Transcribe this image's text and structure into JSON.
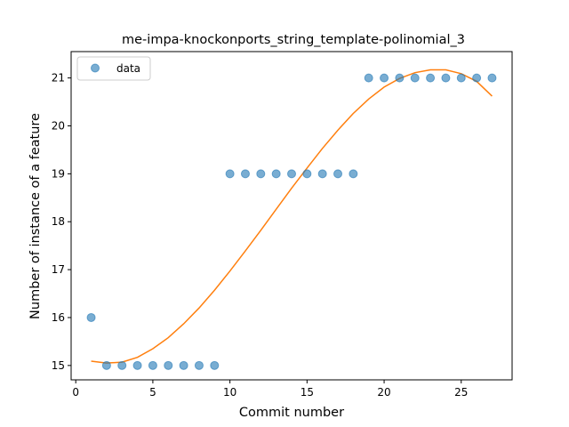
{
  "chart_data": {
    "type": "scatter",
    "title": "me-impa-knockonports_string_template-polinomial_3",
    "xlabel": "Commit number",
    "ylabel": "Number of instance of a feature",
    "xlim": [
      -0.3,
      28.3
    ],
    "ylim": [
      14.7,
      21.55
    ],
    "x_ticks": [
      0,
      5,
      10,
      15,
      20,
      25
    ],
    "y_ticks": [
      15,
      16,
      17,
      18,
      19,
      20,
      21
    ],
    "legend": {
      "placement": "top-left",
      "entries": [
        "data"
      ]
    },
    "grid": false,
    "series": [
      {
        "name": "data",
        "kind": "scatter",
        "color": "#1f77b4",
        "x": [
          1,
          2,
          3,
          4,
          5,
          6,
          7,
          8,
          9,
          10,
          11,
          12,
          13,
          14,
          15,
          16,
          17,
          18,
          19,
          20,
          21,
          22,
          23,
          24,
          25,
          26,
          27
        ],
        "y": [
          16,
          15,
          15,
          15,
          15,
          15,
          15,
          15,
          15,
          19,
          19,
          19,
          19,
          19,
          19,
          19,
          19,
          19,
          21,
          21,
          21,
          21,
          21,
          21,
          21,
          21,
          21
        ]
      },
      {
        "kind": "line",
        "color": "#ff7f0e",
        "x": [
          1,
          2,
          3,
          4,
          5,
          6,
          7,
          8,
          9,
          10,
          11,
          12,
          13,
          14,
          15,
          16,
          17,
          18,
          19,
          20,
          21,
          22,
          23,
          24,
          25,
          26,
          27
        ],
        "y": [
          15.09,
          15.05,
          15.07,
          15.17,
          15.35,
          15.58,
          15.87,
          16.2,
          16.57,
          16.97,
          17.39,
          17.82,
          18.26,
          18.7,
          19.12,
          19.53,
          19.91,
          20.26,
          20.56,
          20.81,
          20.99,
          21.11,
          21.17,
          21.17,
          21.09,
          20.93,
          20.62
        ]
      }
    ]
  }
}
